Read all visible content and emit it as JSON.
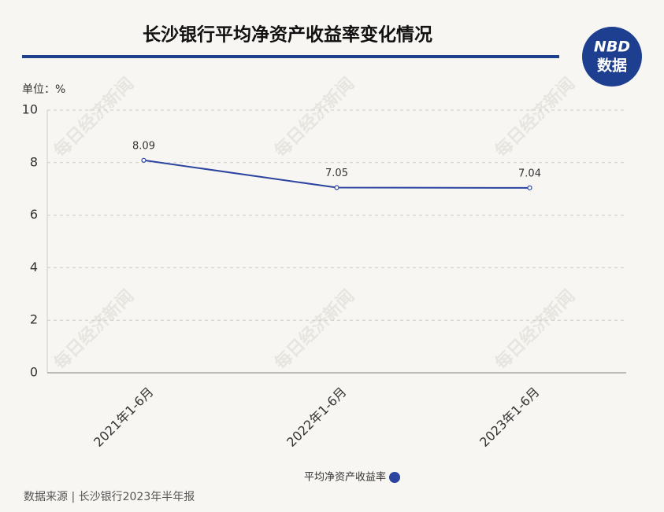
{
  "chart_data": {
    "type": "line",
    "title": "长沙银行平均净资产收益率变化情况",
    "unit": "单位：%",
    "logo": {
      "top": "NBD",
      "bottom": "数据"
    },
    "watermark": "每日经济新闻",
    "categories": [
      "2021年1-6月",
      "2022年1-6月",
      "2023年1-6月"
    ],
    "series": [
      {
        "name": "平均净资产收益率",
        "color": "#2a44a0",
        "values": [
          8.09,
          7.05,
          7.04
        ]
      }
    ],
    "ylim": [
      0,
      10
    ],
    "yticks": [
      0,
      2,
      4,
      6,
      8,
      10
    ],
    "grid": true,
    "source": "数据来源 | 长沙银行2023年半年报"
  }
}
